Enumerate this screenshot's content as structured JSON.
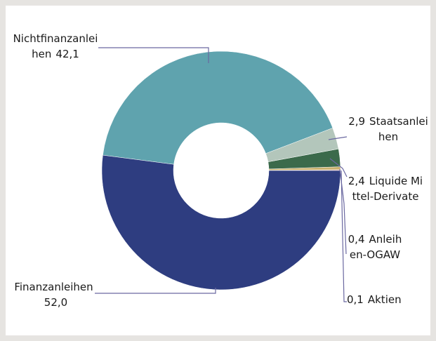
{
  "chart_data": {
    "type": "donut",
    "categories": [
      "Finanzanleihen",
      "Nichtfinanzanleihen",
      "Staatsanleihen",
      "Liquide Mittel-Derivate",
      "Anleihen-OGAW",
      "Aktien"
    ],
    "values": [
      52.0,
      42.1,
      2.9,
      2.4,
      0.4,
      0.1
    ],
    "value_labels": [
      "52,0",
      "42,1",
      "2,9",
      "2,4",
      "0,4",
      "0,1"
    ],
    "colors": [
      "#2e3d80",
      "#5fa3ae",
      "#b3c6bb",
      "#3b6a4b",
      "#c9b16e",
      "#c96a6a"
    ]
  }
}
